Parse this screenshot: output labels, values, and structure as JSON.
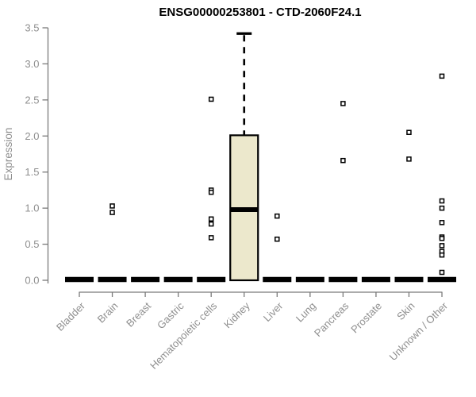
{
  "chart_data": {
    "type": "boxplot",
    "title": "ENSG00000253801 - CTD-2060F24.1",
    "ylabel": "Expression",
    "xlabel": "",
    "ylim": [
      0,
      3.5
    ],
    "ytick_labels": [
      "0.0",
      "0.5",
      "1.0",
      "1.5",
      "2.0",
      "2.5",
      "3.0",
      "3.5"
    ],
    "ytick_values": [
      0,
      0.5,
      1.0,
      1.5,
      2.0,
      2.5,
      3.0,
      3.5
    ],
    "grid": false,
    "legend": null,
    "categories": [
      "Bladder",
      "Brain",
      "Breast",
      "Gastric",
      "Hematopoietic cells",
      "Kidney",
      "Liver",
      "Lung",
      "Pancreas",
      "Prostate",
      "Skin",
      "Unknown / Other"
    ],
    "boxes": [
      {
        "category": "Bladder",
        "q1": 0,
        "median": 0,
        "q3": 0,
        "whisker_low": 0,
        "whisker_high": 0,
        "outliers": []
      },
      {
        "category": "Brain",
        "q1": 0,
        "median": 0,
        "q3": 0,
        "whisker_low": 0,
        "whisker_high": 0,
        "outliers": [
          1.03,
          0.94
        ]
      },
      {
        "category": "Breast",
        "q1": 0,
        "median": 0,
        "q3": 0,
        "whisker_low": 0,
        "whisker_high": 0,
        "outliers": []
      },
      {
        "category": "Gastric",
        "q1": 0,
        "median": 0,
        "q3": 0,
        "whisker_low": 0,
        "whisker_high": 0,
        "outliers": []
      },
      {
        "category": "Hematopoietic cells",
        "q1": 0,
        "median": 0,
        "q3": 0,
        "whisker_low": 0,
        "whisker_high": 0,
        "outliers": [
          2.51,
          1.25,
          1.22,
          0.85,
          0.78,
          0.59
        ]
      },
      {
        "category": "Kidney",
        "q1": 0,
        "median": 0.98,
        "q3": 2.01,
        "whisker_low": 0,
        "whisker_high": 3.42,
        "outliers": []
      },
      {
        "category": "Liver",
        "q1": 0,
        "median": 0,
        "q3": 0,
        "whisker_low": 0,
        "whisker_high": 0,
        "outliers": [
          0.89,
          0.57
        ]
      },
      {
        "category": "Lung",
        "q1": 0,
        "median": 0,
        "q3": 0,
        "whisker_low": 0,
        "whisker_high": 0,
        "outliers": []
      },
      {
        "category": "Pancreas",
        "q1": 0,
        "median": 0,
        "q3": 0,
        "whisker_low": 0,
        "whisker_high": 0,
        "outliers": [
          2.45,
          1.66
        ]
      },
      {
        "category": "Prostate",
        "q1": 0,
        "median": 0,
        "q3": 0,
        "whisker_low": 0,
        "whisker_high": 0,
        "outliers": []
      },
      {
        "category": "Skin",
        "q1": 0,
        "median": 0,
        "q3": 0,
        "whisker_low": 0,
        "whisker_high": 0,
        "outliers": [
          2.05,
          1.68
        ]
      },
      {
        "category": "Unknown / Other",
        "q1": 0,
        "median": 0,
        "q3": 0,
        "whisker_low": 0,
        "whisker_high": 0,
        "outliers": [
          2.83,
          1.1,
          1.0,
          0.8,
          0.6,
          0.58,
          0.48,
          0.4,
          0.35,
          0.11
        ]
      }
    ],
    "colors": {
      "background": "#FFFFFF",
      "title": "#000000",
      "axis_line": "#7A7A7A",
      "tick_label": "#8F8F8F",
      "axis_label": "#8F8F8F",
      "box_fill": "#ECE8CC",
      "box_border": "#000000",
      "median_line": "#000000",
      "whisker": "#000000",
      "outlier_fill": "#FFFFFF",
      "outlier_border": "#000000"
    }
  }
}
